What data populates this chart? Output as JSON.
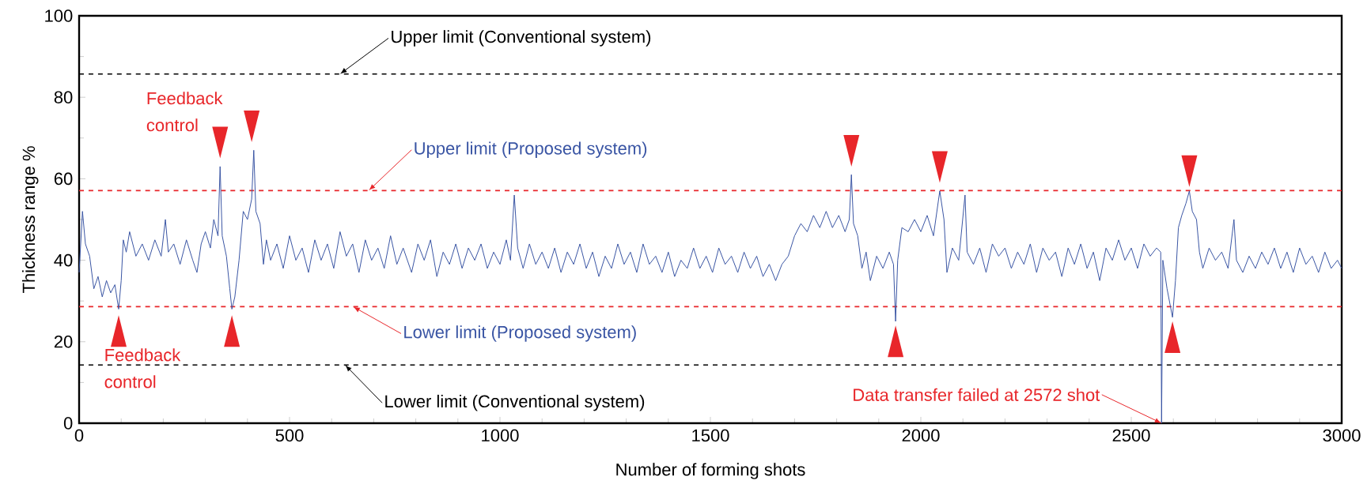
{
  "chart_data": {
    "type": "line",
    "xlabel": "Number of forming shots",
    "ylabel": "Thickness range  %",
    "xlim": [
      0,
      3000
    ],
    "xticks": [
      0,
      500,
      1000,
      1500,
      2000,
      2500,
      3000
    ],
    "ylim": [
      0,
      100
    ],
    "yticks": [
      0,
      20,
      40,
      60,
      80,
      100
    ],
    "grid": false,
    "marker": "none",
    "line_style": "solid",
    "series": [
      {
        "color": "#3a55a4",
        "x": [
          0,
          8,
          15,
          25,
          35,
          45,
          55,
          65,
          75,
          85,
          94,
          100,
          105,
          112,
          120,
          135,
          150,
          165,
          180,
          195,
          205,
          212,
          225,
          240,
          255,
          270,
          280,
          290,
          300,
          312,
          320,
          330,
          335,
          340,
          350,
          358,
          363,
          370,
          380,
          390,
          400,
          410,
          415,
          420,
          430,
          438,
          445,
          455,
          470,
          485,
          500,
          515,
          530,
          545,
          560,
          575,
          590,
          605,
          620,
          635,
          650,
          665,
          680,
          695,
          710,
          725,
          740,
          755,
          770,
          790,
          805,
          820,
          835,
          850,
          865,
          880,
          895,
          910,
          925,
          940,
          955,
          970,
          985,
          1000,
          1015,
          1025,
          1034,
          1042,
          1055,
          1070,
          1085,
          1100,
          1115,
          1130,
          1145,
          1160,
          1175,
          1190,
          1205,
          1220,
          1235,
          1250,
          1265,
          1280,
          1295,
          1310,
          1325,
          1340,
          1355,
          1370,
          1385,
          1400,
          1415,
          1430,
          1445,
          1460,
          1475,
          1490,
          1505,
          1520,
          1535,
          1550,
          1565,
          1580,
          1595,
          1610,
          1625,
          1640,
          1655,
          1670,
          1685,
          1700,
          1715,
          1730,
          1745,
          1760,
          1775,
          1790,
          1805,
          1820,
          1830,
          1835,
          1840,
          1850,
          1860,
          1870,
          1880,
          1895,
          1910,
          1925,
          1935,
          1940,
          1945,
          1955,
          1970,
          1985,
          2000,
          2015,
          2030,
          2045,
          2055,
          2062,
          2075,
          2090,
          2105,
          2110,
          2125,
          2140,
          2155,
          2170,
          2185,
          2200,
          2215,
          2230,
          2245,
          2260,
          2275,
          2290,
          2305,
          2320,
          2335,
          2350,
          2365,
          2380,
          2395,
          2410,
          2425,
          2440,
          2455,
          2470,
          2485,
          2500,
          2515,
          2530,
          2545,
          2560,
          2570,
          2572,
          2575,
          2585,
          2598,
          2605,
          2612,
          2620,
          2630,
          2638,
          2645,
          2655,
          2662,
          2670,
          2685,
          2700,
          2715,
          2730,
          2744,
          2750,
          2765,
          2780,
          2795,
          2810,
          2825,
          2840,
          2855,
          2870,
          2885,
          2900,
          2915,
          2930,
          2945,
          2960,
          2975,
          2990,
          3000
        ],
        "values": [
          37,
          52,
          44,
          41,
          33,
          36,
          31,
          35,
          32,
          34,
          28,
          35,
          45,
          42,
          47,
          41,
          44,
          40,
          45,
          41,
          50,
          42,
          44,
          39,
          45,
          40,
          37,
          44,
          47,
          43,
          50,
          46,
          63,
          46,
          41,
          33,
          28,
          31,
          40,
          52,
          50,
          55,
          67,
          52,
          49,
          39,
          45,
          40,
          44,
          38,
          46,
          40,
          43,
          37,
          45,
          40,
          44,
          38,
          47,
          41,
          44,
          37,
          45,
          40,
          43,
          38,
          46,
          39,
          43,
          37,
          44,
          40,
          45,
          36,
          42,
          39,
          44,
          38,
          43,
          40,
          44,
          38,
          42,
          39,
          45,
          40,
          56,
          43,
          38,
          44,
          39,
          42,
          38,
          43,
          37,
          42,
          39,
          44,
          38,
          42,
          36,
          41,
          38,
          44,
          39,
          42,
          37,
          44,
          39,
          41,
          37,
          42,
          36,
          40,
          38,
          43,
          38,
          41,
          37,
          43,
          39,
          41,
          37,
          42,
          38,
          41,
          36,
          39,
          35,
          39,
          41,
          46,
          49,
          47,
          51,
          48,
          52,
          48,
          51,
          47,
          50,
          61,
          49,
          46,
          38,
          42,
          35,
          41,
          38,
          42,
          39,
          25,
          40,
          48,
          47,
          50,
          47,
          51,
          46,
          57,
          50,
          37,
          43,
          40,
          56,
          42,
          39,
          43,
          37,
          44,
          41,
          43,
          38,
          42,
          39,
          44,
          37,
          43,
          40,
          42,
          36,
          43,
          39,
          44,
          38,
          42,
          35,
          43,
          40,
          45,
          40,
          43,
          38,
          44,
          41,
          43,
          42,
          0,
          40,
          33,
          26,
          35,
          48,
          51,
          54,
          57,
          52,
          50,
          42,
          38,
          43,
          40,
          42,
          38,
          50,
          40,
          37,
          41,
          38,
          42,
          39,
          43,
          38,
          42,
          37,
          43,
          39,
          41,
          37,
          42,
          38,
          40,
          38
        ]
      }
    ],
    "ref_lines": [
      {
        "axis": "y",
        "value": 85.7,
        "color": "#000000",
        "line_style": "dashed"
      },
      {
        "axis": "y",
        "value": 57.1,
        "color": "#e8262a",
        "line_style": "dashed"
      },
      {
        "axis": "y",
        "value": 28.6,
        "color": "#e8262a",
        "line_style": "dashed"
      },
      {
        "axis": "y",
        "value": 14.3,
        "color": "#000000",
        "line_style": "dashed"
      }
    ],
    "annotations": [
      {
        "text": "Upper limit (Conventional system)",
        "x": 620,
        "y": 85.7
      },
      {
        "text": "Upper limit (Proposed system)",
        "x": 688,
        "y": 57.1
      },
      {
        "text": "Lower limit (Proposed system)",
        "x": 651,
        "y": 28.6
      },
      {
        "text": "Lower limit (Conventional system)",
        "x": 632,
        "y": 14.3
      },
      {
        "text": "Data transfer failed at 2572 shot",
        "x": 2572,
        "y": 0
      },
      {
        "text": "Feedback control",
        "x": 335,
        "y": 63.2
      },
      {
        "text": "Feedback control",
        "x": 94,
        "y": 28.5
      }
    ]
  }
}
